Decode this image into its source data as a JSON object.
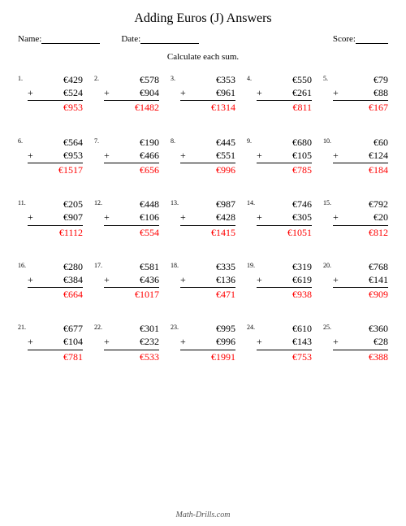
{
  "title": "Adding Euros (J) Answers",
  "labels": {
    "name": "Name:",
    "date": "Date:",
    "score": "Score:"
  },
  "instruction": "Calculate each sum.",
  "currency": "€",
  "plus": "+",
  "answer_color": "#ff0000",
  "footer": "Math-Drills.com",
  "problems": [
    {
      "n": "1.",
      "a": 429,
      "b": 524,
      "s": 953
    },
    {
      "n": "2.",
      "a": 578,
      "b": 904,
      "s": 1482
    },
    {
      "n": "3.",
      "a": 353,
      "b": 961,
      "s": 1314
    },
    {
      "n": "4.",
      "a": 550,
      "b": 261,
      "s": 811
    },
    {
      "n": "5.",
      "a": 79,
      "b": 88,
      "s": 167
    },
    {
      "n": "6.",
      "a": 564,
      "b": 953,
      "s": 1517
    },
    {
      "n": "7.",
      "a": 190,
      "b": 466,
      "s": 656
    },
    {
      "n": "8.",
      "a": 445,
      "b": 551,
      "s": 996
    },
    {
      "n": "9.",
      "a": 680,
      "b": 105,
      "s": 785
    },
    {
      "n": "10.",
      "a": 60,
      "b": 124,
      "s": 184
    },
    {
      "n": "11.",
      "a": 205,
      "b": 907,
      "s": 1112
    },
    {
      "n": "12.",
      "a": 448,
      "b": 106,
      "s": 554
    },
    {
      "n": "13.",
      "a": 987,
      "b": 428,
      "s": 1415
    },
    {
      "n": "14.",
      "a": 746,
      "b": 305,
      "s": 1051
    },
    {
      "n": "15.",
      "a": 792,
      "b": 20,
      "s": 812
    },
    {
      "n": "16.",
      "a": 280,
      "b": 384,
      "s": 664
    },
    {
      "n": "17.",
      "a": 581,
      "b": 436,
      "s": 1017
    },
    {
      "n": "18.",
      "a": 335,
      "b": 136,
      "s": 471
    },
    {
      "n": "19.",
      "a": 319,
      "b": 619,
      "s": 938
    },
    {
      "n": "20.",
      "a": 768,
      "b": 141,
      "s": 909
    },
    {
      "n": "21.",
      "a": 677,
      "b": 104,
      "s": 781
    },
    {
      "n": "22.",
      "a": 301,
      "b": 232,
      "s": 533
    },
    {
      "n": "23.",
      "a": 995,
      "b": 996,
      "s": 1991
    },
    {
      "n": "24.",
      "a": 610,
      "b": 143,
      "s": 753
    },
    {
      "n": "25.",
      "a": 360,
      "b": 28,
      "s": 388
    }
  ]
}
